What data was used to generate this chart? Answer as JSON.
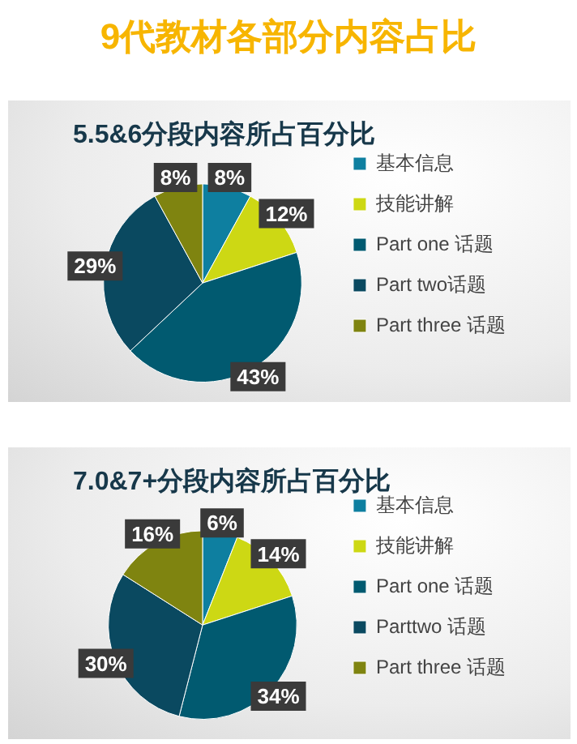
{
  "chart_data": [
    {
      "type": "other",
      "title": "9代教材各部分内容占比"
    },
    {
      "type": "pie",
      "title": "5.5&6分段内容所占百分比",
      "categories": [
        "基本信息",
        "技能讲解",
        "Part one 话题",
        "Part two话题",
        "Part three 话题"
      ],
      "values": [
        8,
        12,
        43,
        29,
        8
      ],
      "value_labels": [
        "8%",
        "12%",
        "43%",
        "29%",
        "8%"
      ],
      "colors": [
        "#0e7fa0",
        "#cdd814",
        "#015a70",
        "#0a4960",
        "#7f8410"
      ],
      "legend": "right"
    },
    {
      "type": "pie",
      "title": "7.0&7+分段内容所占百分比",
      "categories": [
        "基本信息",
        "技能讲解",
        "Part one 话题",
        "Parttwo 话题",
        "Part three 话题"
      ],
      "values": [
        6,
        14,
        34,
        30,
        16
      ],
      "value_labels": [
        "6%",
        "14%",
        "34%",
        "30%",
        "16%"
      ],
      "colors": [
        "#0e7fa0",
        "#cdd814",
        "#015a70",
        "#0a4960",
        "#7f8410"
      ],
      "legend": "right"
    }
  ]
}
